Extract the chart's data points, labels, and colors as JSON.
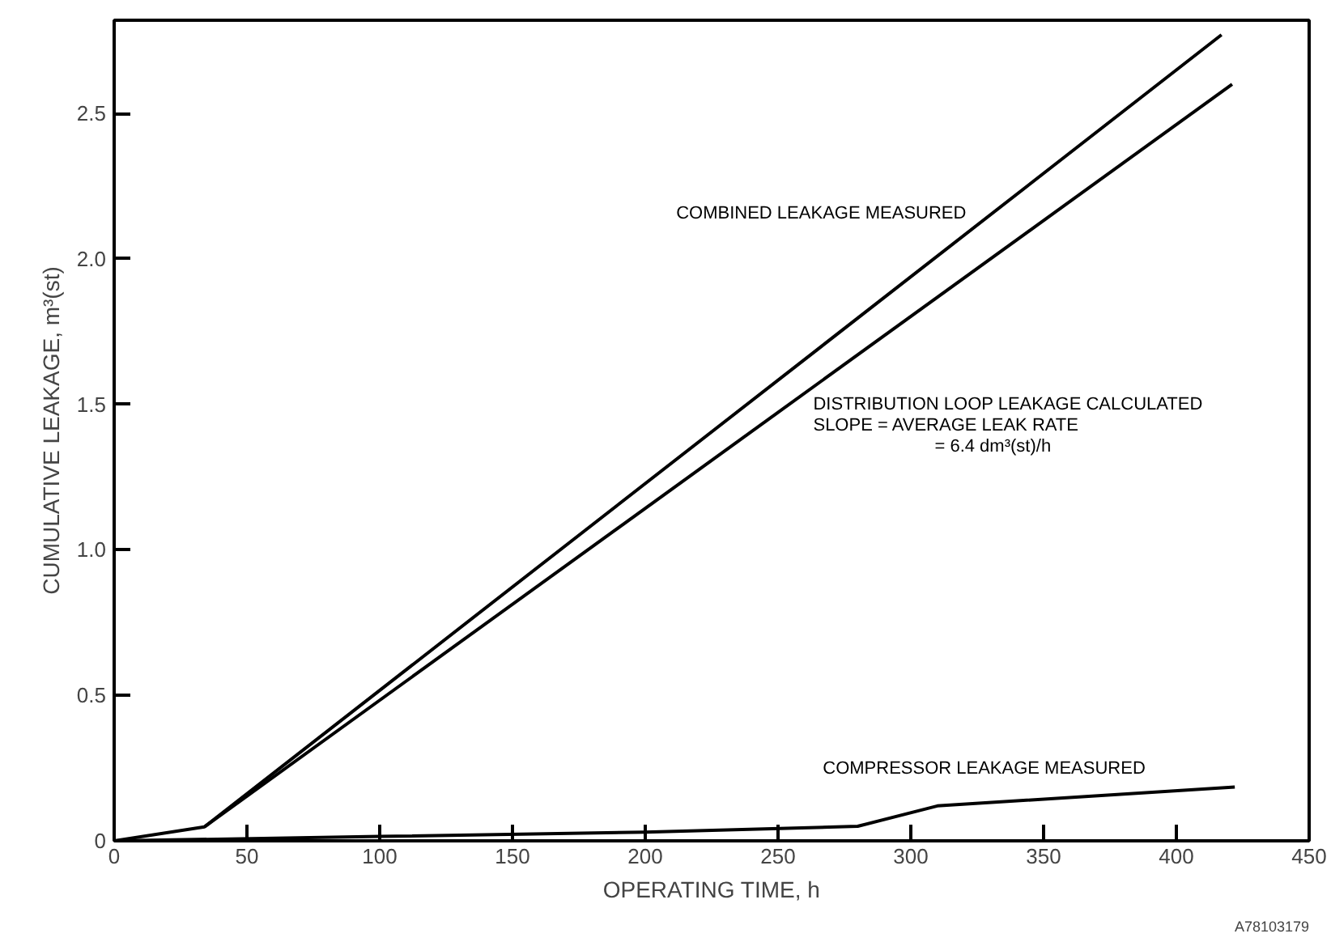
{
  "chart_data": {
    "type": "line",
    "xlabel": "OPERATING TIME, h",
    "ylabel": "CUMULATIVE LEAKAGE, m³(st)",
    "xlim": [
      0,
      450
    ],
    "ylim": [
      0,
      2.82
    ],
    "xticks": [
      0,
      50,
      100,
      150,
      200,
      250,
      300,
      350,
      400,
      450
    ],
    "yticks": [
      0,
      0.5,
      {
        "value": 1,
        "label": "1.0"
      },
      1.5,
      {
        "value": 2,
        "label": "2.0"
      },
      2.5
    ],
    "grid": false,
    "marker": "none",
    "line_style": "solid",
    "series": [
      {
        "color": "#000000",
        "x": [
          0,
          34,
          417
        ],
        "values": [
          0,
          0.048,
          2.77
        ]
      },
      {
        "color": "#000000",
        "x": [
          34,
          421
        ],
        "values": [
          0.048,
          2.6
        ]
      },
      {
        "color": "#000000",
        "x": [
          0,
          100,
          200,
          280,
          310,
          422
        ],
        "values": [
          0,
          0.015,
          0.03,
          0.05,
          0.12,
          0.185
        ]
      }
    ],
    "annotations": [
      "COMBINED LEAKAGE MEASURED",
      "DISTRIBUTION LOOP LEAKAGE CALCULATED\nSLOPE = AVERAGE LEAK RATE\n= 6.4 dm³(st)/h",
      "COMPRESSOR LEAKAGE MEASURED",
      "A78103179"
    ]
  }
}
